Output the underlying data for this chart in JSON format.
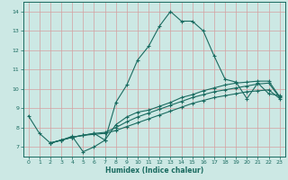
{
  "xlabel": "Humidex (Indice chaleur)",
  "bg_color": "#cce8e4",
  "grid_color": "#aad4ce",
  "line_color": "#1a6b60",
  "xlim": [
    -0.5,
    23.5
  ],
  "ylim": [
    6.5,
    14.5
  ],
  "xticks": [
    0,
    1,
    2,
    3,
    4,
    5,
    6,
    7,
    8,
    9,
    10,
    11,
    12,
    13,
    14,
    15,
    16,
    17,
    18,
    19,
    20,
    21,
    22,
    23
  ],
  "yticks": [
    7,
    8,
    9,
    10,
    11,
    12,
    13,
    14
  ],
  "line1_x": [
    0,
    1,
    2,
    3,
    4,
    5,
    6,
    7,
    8,
    9,
    10,
    11,
    12,
    13,
    14,
    15,
    16,
    17,
    18,
    19,
    20,
    21,
    22,
    23
  ],
  "line1_y": [
    8.6,
    7.7,
    7.2,
    7.35,
    7.55,
    6.75,
    7.0,
    7.35,
    9.3,
    10.2,
    11.5,
    12.2,
    13.25,
    14.0,
    13.5,
    13.5,
    13.0,
    11.7,
    10.5,
    10.35,
    9.5,
    10.3,
    9.75,
    9.65
  ],
  "line2_x": [
    2,
    3,
    4,
    5,
    6,
    7,
    8,
    9,
    10,
    11,
    12,
    13,
    14,
    15,
    16,
    17,
    18,
    19,
    20,
    21,
    22,
    23
  ],
  "line2_y": [
    7.2,
    7.35,
    7.5,
    7.6,
    7.7,
    7.35,
    8.15,
    8.55,
    8.8,
    8.9,
    9.1,
    9.3,
    9.55,
    9.7,
    9.9,
    10.05,
    10.2,
    10.3,
    10.35,
    10.4,
    10.4,
    9.6
  ],
  "line3_x": [
    2,
    3,
    4,
    5,
    6,
    7,
    8,
    9,
    10,
    11,
    12,
    13,
    14,
    15,
    16,
    17,
    18,
    19,
    20,
    21,
    22,
    23
  ],
  "line3_y": [
    7.2,
    7.35,
    7.5,
    7.6,
    7.7,
    7.75,
    8.0,
    8.3,
    8.55,
    8.75,
    8.95,
    9.15,
    9.35,
    9.55,
    9.7,
    9.85,
    9.95,
    10.05,
    10.15,
    10.25,
    10.3,
    9.55
  ],
  "line4_x": [
    2,
    3,
    4,
    5,
    6,
    7,
    8,
    9,
    10,
    11,
    12,
    13,
    14,
    15,
    16,
    17,
    18,
    19,
    20,
    21,
    22,
    23
  ],
  "line4_y": [
    7.2,
    7.35,
    7.5,
    7.6,
    7.65,
    7.7,
    7.85,
    8.05,
    8.25,
    8.45,
    8.65,
    8.85,
    9.05,
    9.25,
    9.4,
    9.55,
    9.65,
    9.75,
    9.85,
    9.9,
    9.95,
    9.5
  ]
}
